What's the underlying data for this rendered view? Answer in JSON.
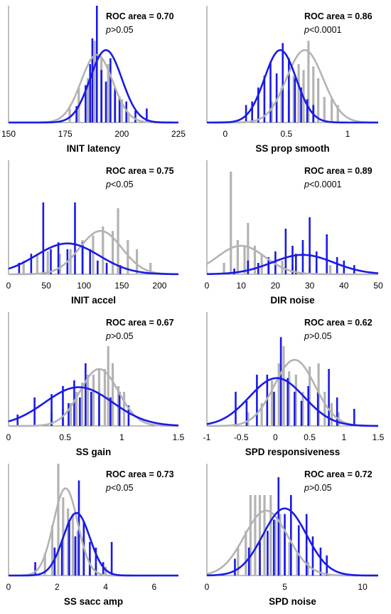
{
  "colors": {
    "group_a": "#b3b3b3",
    "group_b": "#1a1ae6",
    "axis": "#7f7f7f"
  },
  "chart_data": [
    {
      "type": "bar",
      "xlabel": "INIT latency",
      "roc": "ROC area = 0.70",
      "p_prefix": "p",
      "p_rest": ">0.05",
      "xlim": [
        150,
        225
      ],
      "ticks": [
        150,
        175,
        200,
        225
      ],
      "ymax": 1.0,
      "series": [
        {
          "bars": [
            [
              177,
              0.12
            ],
            [
              181,
              0.3
            ],
            [
              185,
              0.38
            ],
            [
              188,
              0.7
            ],
            [
              191,
              0.55
            ],
            [
              194,
              0.5
            ],
            [
              197,
              0.25
            ],
            [
              200,
              0.2
            ],
            [
              203,
              0.08
            ]
          ],
          "curve": {
            "mean": 189,
            "sd": 7,
            "peak": 0.58
          }
        },
        {
          "bars": [
            [
              180,
              0.14
            ],
            [
              184,
              0.32
            ],
            [
              186,
              0.5
            ],
            [
              187,
              0.72
            ],
            [
              189,
              1.0
            ],
            [
              191,
              0.45
            ],
            [
              193,
              0.35
            ],
            [
              195,
              0.55
            ],
            [
              197,
              0.3
            ],
            [
              199,
              0.22
            ],
            [
              202,
              0.18
            ],
            [
              206,
              0.1
            ],
            [
              211,
              0.12
            ]
          ],
          "curve": {
            "mean": 193,
            "sd": 7,
            "peak": 0.62
          }
        }
      ]
    },
    {
      "type": "bar",
      "xlabel": "SS prop smooth",
      "roc": "ROC area = 0.86",
      "p_prefix": "p",
      "p_rest": "<0.0001",
      "xlim": [
        -0.15,
        1.25
      ],
      "ticks": [
        0,
        0.5,
        1
      ],
      "ymax": 1.0,
      "series": [
        {
          "bars": [
            [
              0.38,
              0.18
            ],
            [
              0.46,
              0.3
            ],
            [
              0.52,
              0.28
            ],
            [
              0.56,
              0.4
            ],
            [
              0.6,
              0.5
            ],
            [
              0.64,
              0.45
            ],
            [
              0.68,
              0.7
            ],
            [
              0.72,
              0.48
            ],
            [
              0.76,
              0.38
            ],
            [
              0.81,
              0.22
            ],
            [
              0.87,
              0.2
            ],
            [
              0.92,
              0.15
            ]
          ],
          "curve": {
            "mean": 0.65,
            "sd": 0.15,
            "peak": 0.62
          }
        },
        {
          "bars": [
            [
              0.17,
              0.15
            ],
            [
              0.22,
              0.18
            ],
            [
              0.27,
              0.3
            ],
            [
              0.32,
              0.4
            ],
            [
              0.37,
              0.52
            ],
            [
              0.42,
              0.42
            ],
            [
              0.47,
              0.68
            ],
            [
              0.52,
              0.55
            ],
            [
              0.57,
              0.38
            ],
            [
              0.62,
              0.3
            ],
            [
              0.67,
              0.2
            ],
            [
              0.72,
              0.15
            ]
          ],
          "curve": {
            "mean": 0.45,
            "sd": 0.13,
            "peak": 0.62
          }
        }
      ]
    },
    {
      "type": "bar",
      "xlabel": "INIT accel",
      "roc": "ROC area = 0.75",
      "p_prefix": "p",
      "p_rest": "<0.05",
      "xlim": [
        0,
        225
      ],
      "ticks": [
        0,
        50,
        100,
        150,
        200
      ],
      "ymax": 1.0,
      "series": [
        {
          "bars": [
            [
              20,
              0.12
            ],
            [
              38,
              0.18
            ],
            [
              52,
              0.2
            ],
            [
              68,
              0.18
            ],
            [
              82,
              0.22
            ],
            [
              98,
              0.3
            ],
            [
              112,
              0.34
            ],
            [
              125,
              0.42
            ],
            [
              138,
              0.38
            ],
            [
              145,
              0.58
            ],
            [
              158,
              0.3
            ],
            [
              170,
              0.22
            ],
            [
              188,
              0.1
            ]
          ],
          "curve": {
            "mean": 122,
            "sd": 28,
            "peak": 0.38
          }
        },
        {
          "bars": [
            [
              14,
              0.1
            ],
            [
              30,
              0.18
            ],
            [
              46,
              0.63
            ],
            [
              56,
              0.22
            ],
            [
              66,
              0.28
            ],
            [
              78,
              0.22
            ],
            [
              88,
              0.63
            ],
            [
              98,
              0.28
            ],
            [
              108,
              0.22
            ],
            [
              118,
              0.12
            ],
            [
              130,
              0.1
            ],
            [
              148,
              0.08
            ]
          ],
          "curve": {
            "mean": 78,
            "sd": 42,
            "peak": 0.27
          }
        }
      ]
    },
    {
      "type": "bar",
      "xlabel": "DIR noise",
      "roc": "ROC area = 0.89",
      "p_prefix": "p",
      "p_rest": "<0.0001",
      "xlim": [
        0,
        50
      ],
      "ticks": [
        0,
        10,
        20,
        30,
        40,
        50
      ],
      "ymax": 1.0,
      "series": [
        {
          "bars": [
            [
              5,
              0.1
            ],
            [
              7,
              0.9
            ],
            [
              9,
              0.3
            ],
            [
              11,
              0.25
            ],
            [
              12,
              0.45
            ],
            [
              14,
              0.25
            ],
            [
              16,
              0.18
            ],
            [
              18,
              0.12
            ],
            [
              22,
              0.12
            ],
            [
              25,
              0.08
            ],
            [
              30,
              0.05
            ],
            [
              36,
              0.08
            ]
          ],
          "curve": {
            "mean": 10,
            "sd": 7,
            "peak": 0.25
          }
        },
        {
          "bars": [
            [
              8,
              0.05
            ],
            [
              12,
              0.12
            ],
            [
              15,
              0.1
            ],
            [
              18,
              0.15
            ],
            [
              20,
              0.2
            ],
            [
              23,
              0.4
            ],
            [
              25,
              0.25
            ],
            [
              26,
              0.18
            ],
            [
              28,
              0.3
            ],
            [
              30,
              0.5
            ],
            [
              32,
              0.2
            ],
            [
              35,
              0.35
            ],
            [
              38,
              0.15
            ],
            [
              40,
              0.12
            ],
            [
              43,
              0.08
            ]
          ],
          "curve": {
            "mean": 28,
            "sd": 9,
            "peak": 0.17
          }
        }
      ]
    },
    {
      "type": "bar",
      "xlabel": "SS gain",
      "roc": "ROC area = 0.67",
      "p_prefix": "p",
      "p_rest": ">0.05",
      "xlim": [
        0,
        1.5
      ],
      "ticks": [
        0,
        0.5,
        1,
        1.5
      ],
      "ymax": 1.0,
      "series": [
        {
          "bars": [
            [
              0.38,
              0.12
            ],
            [
              0.48,
              0.15
            ],
            [
              0.55,
              0.2
            ],
            [
              0.6,
              0.3
            ],
            [
              0.65,
              0.38
            ],
            [
              0.7,
              0.45
            ],
            [
              0.75,
              0.45
            ],
            [
              0.8,
              0.5
            ],
            [
              0.85,
              0.5
            ],
            [
              0.88,
              0.7
            ],
            [
              0.92,
              0.55
            ],
            [
              0.97,
              0.35
            ],
            [
              1.02,
              0.3
            ]
          ],
          "curve": {
            "mean": 0.8,
            "sd": 0.17,
            "peak": 0.5
          }
        },
        {
          "bars": [
            [
              0.08,
              0.1
            ],
            [
              0.23,
              0.25
            ],
            [
              0.38,
              0.28
            ],
            [
              0.48,
              0.35
            ],
            [
              0.53,
              0.2
            ],
            [
              0.58,
              0.4
            ],
            [
              0.63,
              0.25
            ],
            [
              0.68,
              0.55
            ],
            [
              0.73,
              0.3
            ],
            [
              0.8,
              0.28
            ],
            [
              0.9,
              0.25
            ],
            [
              0.98,
              0.3
            ],
            [
              1.06,
              0.18
            ]
          ],
          "curve": {
            "mean": 0.62,
            "sd": 0.3,
            "peak": 0.34
          }
        }
      ]
    },
    {
      "type": "bar",
      "xlabel": "SPD responsiveness",
      "roc": "ROC area = 0.62",
      "p_prefix": "p",
      "p_rest": ">0.05",
      "xlim": [
        -1,
        1.5
      ],
      "ticks": [
        -1,
        -0.5,
        0,
        0.5,
        1,
        1.5
      ],
      "ymax": 1.0,
      "series": [
        {
          "bars": [
            [
              -0.4,
              0.12
            ],
            [
              -0.2,
              0.2
            ],
            [
              -0.05,
              0.4
            ],
            [
              0.05,
              0.55
            ],
            [
              0.12,
              0.7
            ],
            [
              0.2,
              0.48
            ],
            [
              0.3,
              0.45
            ],
            [
              0.4,
              0.3
            ],
            [
              0.5,
              0.52
            ],
            [
              0.63,
              0.55
            ],
            [
              0.72,
              0.3
            ],
            [
              0.82,
              0.2
            ],
            [
              0.92,
              0.12
            ]
          ],
          "curve": {
            "mean": 0.28,
            "sd": 0.3,
            "peak": 0.58
          }
        },
        {
          "bars": [
            [
              -0.58,
              0.3
            ],
            [
              -0.42,
              0.22
            ],
            [
              -0.27,
              0.45
            ],
            [
              -0.12,
              0.45
            ],
            [
              -0.02,
              0.3
            ],
            [
              0.08,
              0.78
            ],
            [
              0.18,
              0.42
            ],
            [
              0.28,
              0.3
            ],
            [
              0.38,
              0.22
            ],
            [
              0.48,
              0.35
            ],
            [
              0.62,
              0.3
            ],
            [
              0.78,
              0.5
            ],
            [
              0.9,
              0.25
            ],
            [
              1.15,
              0.15
            ]
          ],
          "curve": {
            "mean": 0.02,
            "sd": 0.4,
            "peak": 0.42
          }
        }
      ]
    },
    {
      "type": "bar",
      "xlabel": "SS sacc amp",
      "roc": "ROC area = 0.73",
      "p_prefix": "p",
      "p_rest": "<0.05",
      "xlim": [
        0,
        7
      ],
      "ticks": [
        0,
        2,
        4,
        6
      ],
      "ymax": 1.0,
      "series": [
        {
          "bars": [
            [
              1.5,
              0.2
            ],
            [
              1.8,
              0.45
            ],
            [
              2.05,
              1.0
            ],
            [
              2.25,
              0.7
            ],
            [
              2.45,
              0.6
            ],
            [
              2.65,
              0.55
            ],
            [
              2.85,
              0.4
            ],
            [
              3.1,
              0.35
            ],
            [
              3.35,
              0.15
            ],
            [
              3.6,
              0.1
            ],
            [
              4.0,
              0.08
            ]
          ],
          "curve": {
            "mean": 2.35,
            "sd": 0.5,
            "peak": 0.78
          }
        },
        {
          "bars": [
            [
              1.1,
              0.12
            ],
            [
              1.9,
              0.25
            ],
            [
              2.2,
              0.32
            ],
            [
              2.5,
              0.5
            ],
            [
              2.75,
              0.35
            ],
            [
              2.9,
              0.85
            ],
            [
              3.1,
              0.48
            ],
            [
              3.35,
              0.3
            ],
            [
              3.6,
              0.25
            ],
            [
              3.9,
              0.12
            ],
            [
              4.25,
              0.3
            ]
          ],
          "curve": {
            "mean": 2.8,
            "sd": 0.55,
            "peak": 0.56
          }
        }
      ]
    },
    {
      "type": "bar",
      "xlabel": "SPD noise",
      "roc": "ROC area = 0.72",
      "p_prefix": "p",
      "p_rest": ">0.05",
      "xlim": [
        0,
        11
      ],
      "ticks": [
        0,
        5,
        10
      ],
      "ymax": 1.0,
      "series": [
        {
          "bars": [
            [
              2.0,
              0.25
            ],
            [
              2.5,
              0.4
            ],
            [
              2.8,
              0.72
            ],
            [
              3.1,
              0.72
            ],
            [
              3.4,
              0.72
            ],
            [
              3.7,
              0.72
            ],
            [
              4.1,
              0.72
            ],
            [
              4.4,
              0.5
            ],
            [
              4.7,
              0.55
            ],
            [
              5.0,
              0.4
            ],
            [
              5.3,
              0.3
            ],
            [
              5.8,
              0.2
            ],
            [
              6.5,
              0.12
            ]
          ],
          "curve": {
            "mean": 3.8,
            "sd": 1.4,
            "peak": 0.58
          }
        },
        {
          "bars": [
            [
              1.8,
              0.15
            ],
            [
              2.7,
              0.25
            ],
            [
              3.4,
              0.3
            ],
            [
              3.9,
              0.4
            ],
            [
              4.3,
              0.5
            ],
            [
              4.6,
              0.88
            ],
            [
              5.0,
              0.55
            ],
            [
              5.4,
              0.72
            ],
            [
              5.9,
              0.45
            ],
            [
              6.4,
              0.55
            ],
            [
              6.8,
              0.35
            ],
            [
              7.3,
              0.25
            ],
            [
              7.7,
              0.18
            ]
          ],
          "curve": {
            "mean": 5.0,
            "sd": 1.4,
            "peak": 0.6
          }
        }
      ]
    }
  ]
}
